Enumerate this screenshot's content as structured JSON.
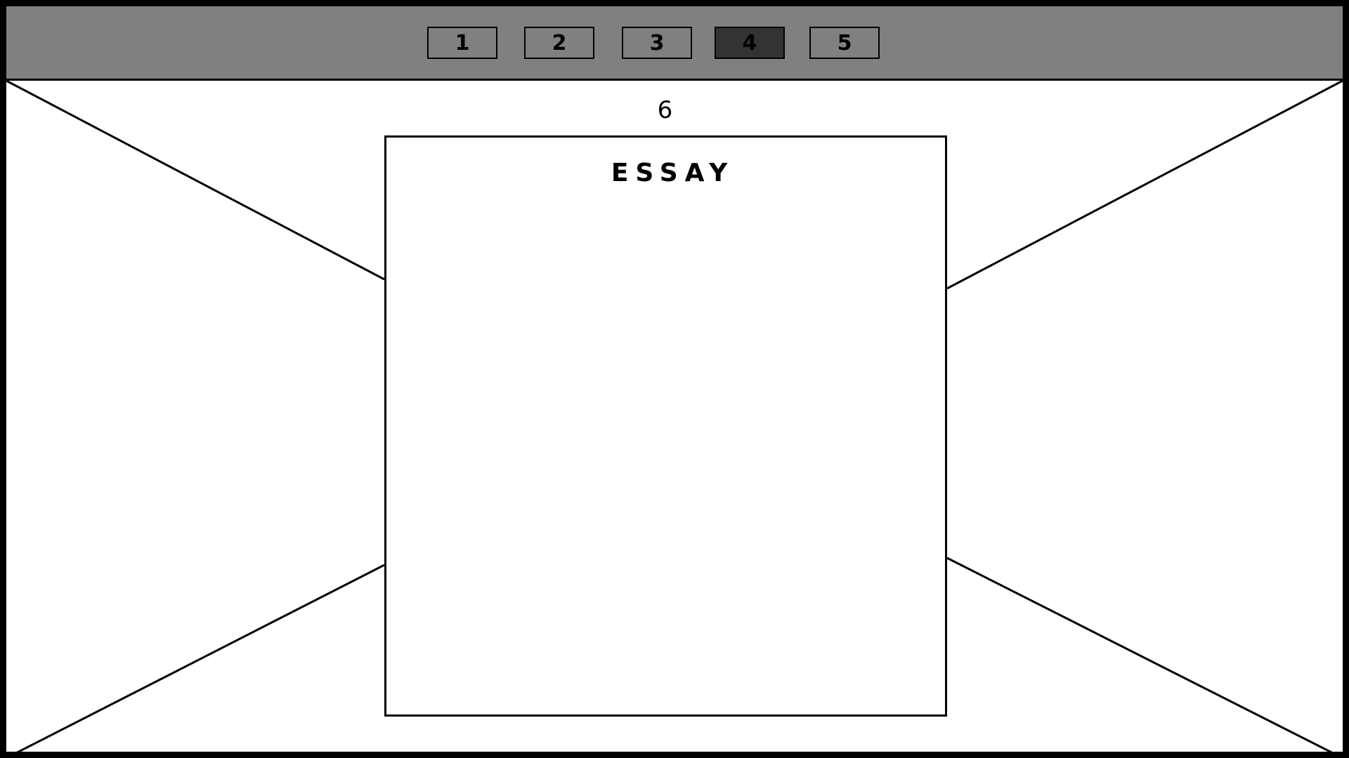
{
  "navigation": {
    "pages": [
      {
        "label": "1",
        "active": false
      },
      {
        "label": "2",
        "active": false
      },
      {
        "label": "3",
        "active": false
      },
      {
        "label": "4",
        "active": true
      },
      {
        "label": "5",
        "active": false
      }
    ]
  },
  "main": {
    "page_number": "6",
    "essay_title": "ESSAY"
  },
  "colors": {
    "topbar": "#808080",
    "active_button": "#333333",
    "border": "#000000",
    "background": "#ffffff"
  }
}
